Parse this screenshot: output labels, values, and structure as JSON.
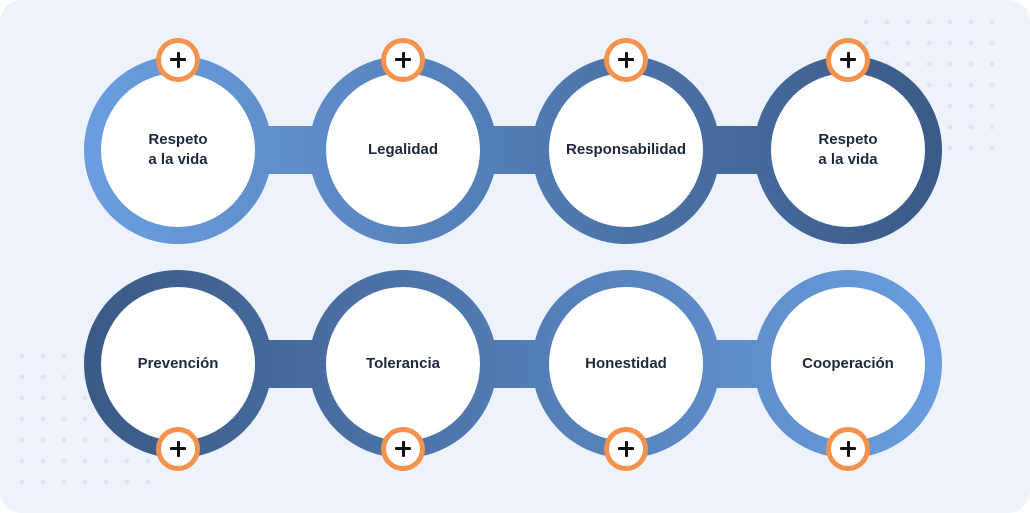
{
  "colors": {
    "background": "#eef3fb",
    "ring_light": "#6a9ee0",
    "ring_dark": "#3a5a87",
    "accent_orange": "#f5924e",
    "text": "#1d2a3c"
  },
  "rows": [
    {
      "values": [
        {
          "label": "Respeto\na la vida",
          "plus_icon": "plus-icon"
        },
        {
          "label": "Legalidad",
          "plus_icon": "plus-icon"
        },
        {
          "label": "Responsabilidad",
          "plus_icon": "plus-icon"
        },
        {
          "label": "Respeto\na la vida",
          "plus_icon": "plus-icon"
        }
      ]
    },
    {
      "values": [
        {
          "label": "Prevención",
          "plus_icon": "plus-icon"
        },
        {
          "label": "Tolerancia",
          "plus_icon": "plus-icon"
        },
        {
          "label": "Honestidad",
          "plus_icon": "plus-icon"
        },
        {
          "label": "Cooperación",
          "plus_icon": "plus-icon"
        }
      ]
    }
  ]
}
